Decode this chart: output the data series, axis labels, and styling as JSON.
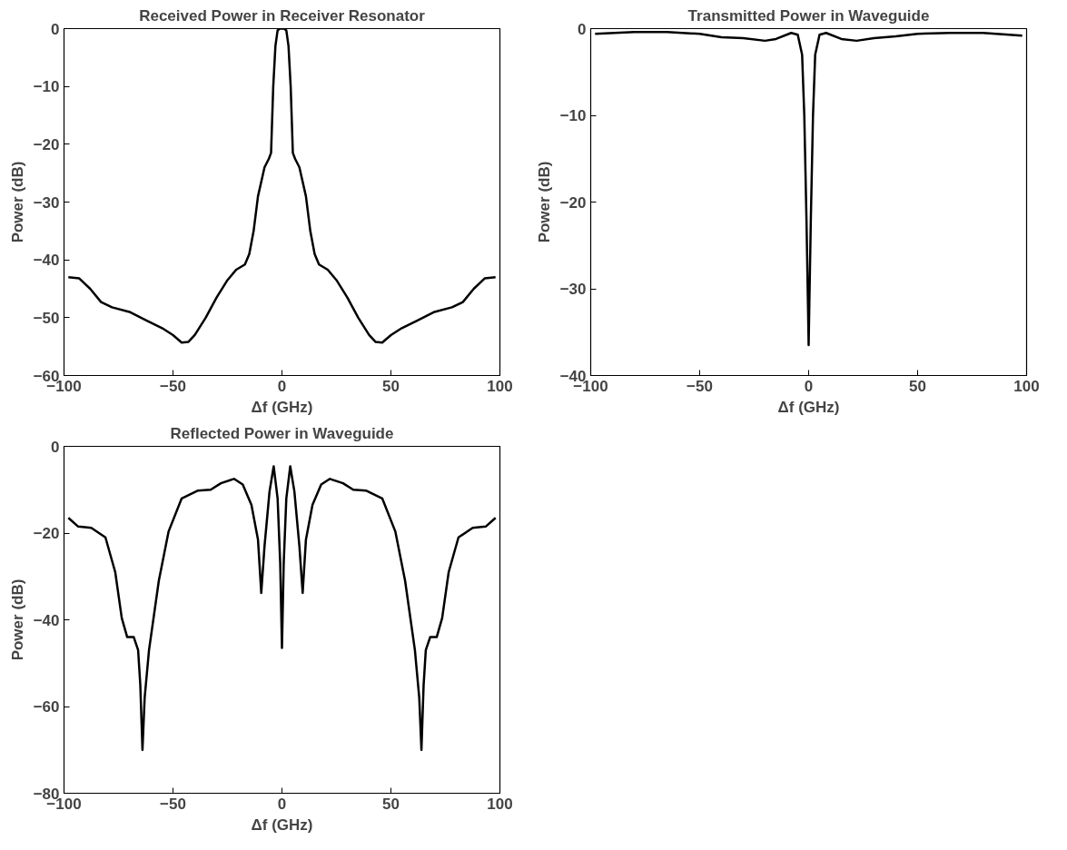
{
  "chart_data": [
    {
      "type": "line",
      "title": "Received Power in Receiver Resonator",
      "xlabel": "Δf (GHz)",
      "ylabel": "Power (dB)",
      "xlim": [
        -100,
        100
      ],
      "ylim": [
        -60,
        0
      ],
      "xticks": [
        -100,
        -50,
        0,
        50,
        100
      ],
      "yticks": [
        -60,
        -50,
        -40,
        -30,
        -20,
        -10,
        0
      ],
      "x": [
        -98,
        -93,
        -88,
        -83,
        -78,
        -70,
        -62,
        -55,
        -50,
        -46,
        -43,
        -40,
        -35,
        -30,
        -25,
        -21,
        -17,
        -15,
        -13,
        -11,
        -8,
        -6,
        -5,
        -4,
        -3,
        -2,
        -1,
        1,
        2,
        3,
        4,
        5,
        6,
        8,
        11,
        13,
        15,
        17,
        21,
        25,
        30,
        35,
        40,
        43,
        46,
        50,
        55,
        62,
        70,
        78,
        83,
        88,
        93,
        98
      ],
      "series": [
        {
          "color": "#000000",
          "values": [
            -43,
            -43.2,
            -45,
            -47.3,
            -48.2,
            -49,
            -50.5,
            -51.8,
            -53,
            -54.3,
            -54.2,
            -53,
            -50,
            -46.5,
            -43.5,
            -41.7,
            -40.8,
            -39,
            -35,
            -29,
            -24,
            -22.5,
            -21.5,
            -10,
            -3,
            -0.3,
            0,
            0,
            -0.3,
            -3,
            -10,
            -21.5,
            -22.5,
            -24,
            -29,
            -35,
            -39,
            -40.8,
            -41.7,
            -43.5,
            -46.5,
            -50,
            -53,
            -54.2,
            -54.3,
            -53,
            -51.8,
            -50.5,
            -49,
            -48.2,
            -47.3,
            -45,
            -43.2,
            -43
          ]
        }
      ]
    },
    {
      "type": "line",
      "title": "Transmitted Power in Waveguide",
      "xlabel": "Δf (GHz)",
      "ylabel": "Power (dB)",
      "xlim": [
        -100,
        100
      ],
      "ylim": [
        -40,
        0
      ],
      "xticks": [
        -100,
        -50,
        0,
        50,
        100
      ],
      "yticks": [
        -40,
        -30,
        -20,
        -10,
        0
      ],
      "x": [
        -98,
        -80,
        -65,
        -50,
        -40,
        -30,
        -20,
        -15,
        -8,
        -5,
        -3,
        -2,
        -1,
        -0.3,
        0,
        0.3,
        1,
        2,
        3,
        5,
        8,
        15,
        22,
        30,
        40,
        50,
        65,
        80,
        98
      ],
      "series": [
        {
          "color": "#000000",
          "values": [
            -0.6,
            -0.4,
            -0.4,
            -0.6,
            -1,
            -1.1,
            -1.4,
            -1.2,
            -0.5,
            -0.7,
            -3,
            -10,
            -22,
            -32,
            -36.5,
            -32,
            -22,
            -10,
            -3,
            -0.7,
            -0.5,
            -1.2,
            -1.4,
            -1.1,
            -0.9,
            -0.6,
            -0.5,
            -0.5,
            -0.8
          ]
        }
      ]
    },
    {
      "type": "line",
      "title": "Reflected Power in Waveguide",
      "xlabel": "Δf (GHz)",
      "ylabel": "Power (dB)",
      "xlim": [
        -100,
        100
      ],
      "ylim": [
        -80,
        0
      ],
      "xticks": [
        -100,
        -50,
        0,
        50,
        100
      ],
      "yticks": [
        -80,
        -60,
        -40,
        -20,
        0
      ],
      "x": [
        -98,
        -93.5,
        -87.5,
        -81,
        -76.5,
        -73.5,
        -71,
        -68,
        -66,
        -65,
        -64,
        -63,
        -61,
        -56.5,
        -52,
        -46,
        -38.5,
        -32.7,
        -28,
        -22,
        -18,
        -14,
        -11,
        -9.5,
        -8,
        -5.7,
        -3.8,
        -2,
        -0.8,
        0,
        0.8,
        2,
        3.8,
        5.7,
        8,
        9.5,
        11,
        14,
        18,
        22,
        28,
        32.7,
        38.5,
        46,
        52,
        56.5,
        61,
        63,
        64,
        65,
        66,
        68,
        71,
        73.5,
        76.5,
        81,
        87.5,
        93.5,
        98
      ],
      "series": [
        {
          "color": "#000000",
          "values": [
            -16.5,
            -18.5,
            -18.8,
            -21,
            -29,
            -39.6,
            -44,
            -44,
            -47,
            -55,
            -70,
            -58,
            -47,
            -31,
            -19.6,
            -12,
            -10.2,
            -10,
            -8.5,
            -7.5,
            -8.8,
            -13.5,
            -21.5,
            -33.8,
            -23,
            -10.4,
            -4.6,
            -12,
            -27,
            -46.5,
            -27,
            -12,
            -4.6,
            -10.4,
            -23,
            -33.8,
            -21.5,
            -13.5,
            -8.8,
            -7.5,
            -8.5,
            -10,
            -10.2,
            -12,
            -19.6,
            -31,
            -47,
            -58,
            -70,
            -55,
            -47,
            -44,
            -44,
            -39.6,
            -29,
            -21,
            -18.8,
            -18.5,
            -16.5
          ]
        }
      ]
    }
  ]
}
